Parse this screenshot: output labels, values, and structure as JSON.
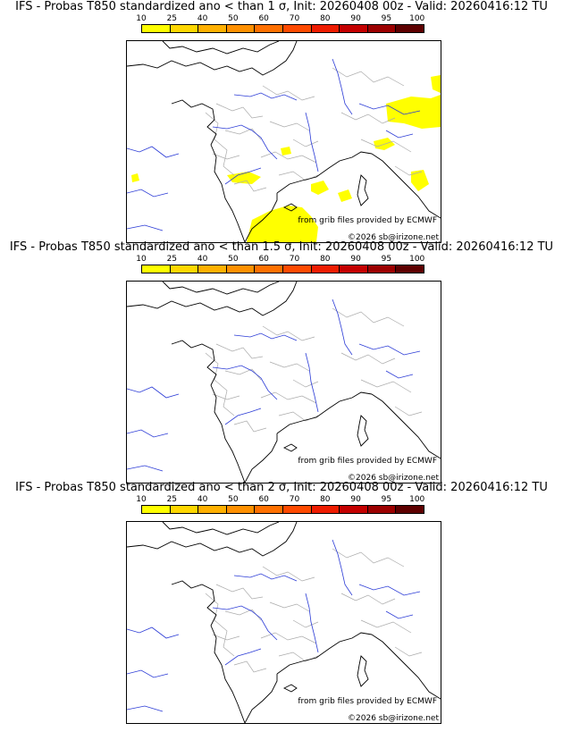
{
  "colorbar": {
    "labels": [
      "10",
      "25",
      "40",
      "50",
      "60",
      "70",
      "80",
      "90",
      "95",
      "100"
    ],
    "colors": [
      "#ffff00",
      "#ffd700",
      "#ffb000",
      "#ff9000",
      "#ff7000",
      "#ff4a00",
      "#ee1c00",
      "#c40000",
      "#9c0000",
      "#5e0000"
    ]
  },
  "panels": [
    {
      "title": "IFS - Probas T850  standardized ano < than 1 σ, Init: 20260408 00z - Valid: 20260416:12 TU",
      "credit": "from grib files provided by ECMWF",
      "copyright": "©2026 sb@irizone.net",
      "shading": "yes"
    },
    {
      "title": "IFS - Probas T850  standardized ano < than 1.5 σ, Init: 20260408 00z - Valid: 20260416:12 TU",
      "credit": "from grib files provided by ECMWF",
      "copyright": "©2026 sb@irizone.net",
      "shading": "no"
    },
    {
      "title": "IFS - Probas T850  standardized ano < than 2 σ, Init: 20260408 00z - Valid: 20260416:12 TU",
      "credit": "from grib files provided by ECMWF",
      "copyright": "©2026 sb@irizone.net",
      "shading": "no"
    }
  ],
  "map_colors": {
    "coast": "#000000",
    "rivers": "#2b3bd6",
    "borders": "#aaaaaa",
    "probability": "#ffff00"
  }
}
